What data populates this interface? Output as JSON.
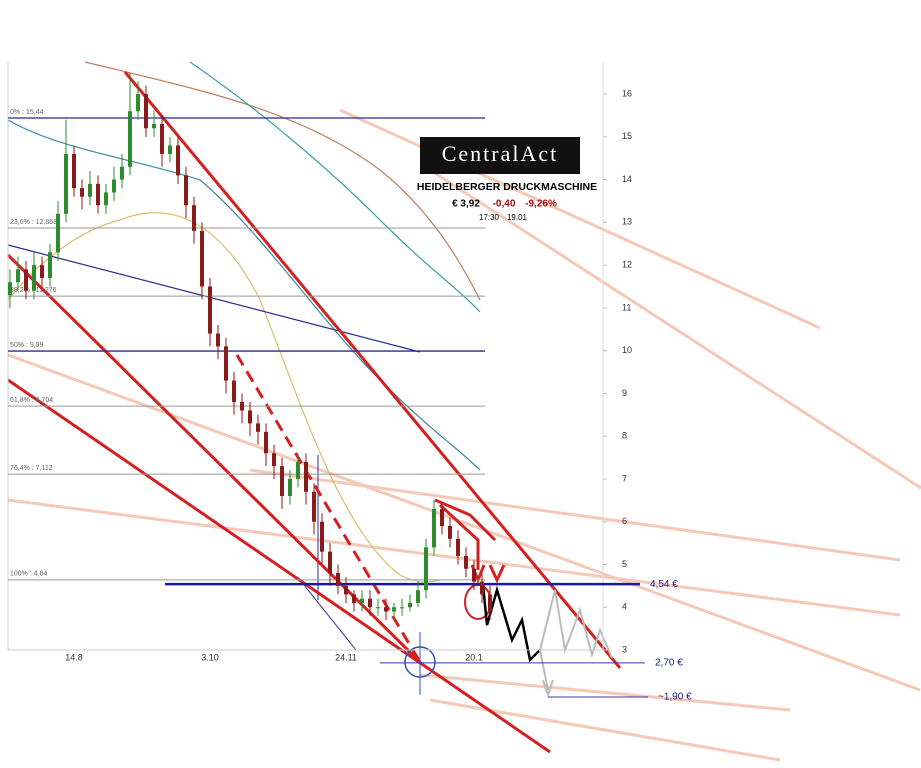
{
  "chart_data": {
    "type": "candlestick",
    "title": "HEIDELBERGER DRUCKMASCHINE",
    "logo": "CentralAct",
    "quote": {
      "price": "€ 3,92",
      "change": "-0,40",
      "change_pct": "-9,26%",
      "time": "17:30",
      "date": "19.01"
    },
    "categories": [
      null,
      null,
      null,
      null,
      null,
      null,
      null,
      null,
      "14.8",
      null,
      null,
      null,
      null,
      null,
      null,
      null,
      null,
      null,
      null,
      null,
      null,
      null,
      null,
      null,
      null,
      "3.10",
      null,
      null,
      null,
      null,
      null,
      null,
      null,
      null,
      null,
      null,
      null,
      null,
      null,
      null,
      null,
      null,
      "24.11",
      null,
      null,
      null,
      null,
      null,
      null,
      null,
      null,
      null,
      null,
      null,
      null,
      null,
      null,
      null,
      "20.1",
      null,
      null
    ],
    "open": [
      11.3,
      11.6,
      11.9,
      11.4,
      12.0,
      11.7,
      12.3,
      13.2,
      14.6,
      13.8,
      13.6,
      13.9,
      13.4,
      13.7,
      14.0,
      14.3,
      15.6,
      16.0,
      15.2,
      15.3,
      14.6,
      14.8,
      14.1,
      13.4,
      12.8,
      11.5,
      10.4,
      10.1,
      9.3,
      8.8,
      8.6,
      8.3,
      8.1,
      7.6,
      7.3,
      6.6,
      7.0,
      7.4,
      6.7,
      6.0,
      5.3,
      4.8,
      4.5,
      4.3,
      4.1,
      4.2,
      4.0,
      4.0,
      3.9,
      4.0,
      4.0,
      4.1,
      4.4,
      5.4,
      6.3,
      5.9,
      5.6,
      5.2,
      4.9,
      4.6,
      4.3
    ],
    "high": [
      11.9,
      12.2,
      12.1,
      12.3,
      12.2,
      12.5,
      13.5,
      15.4,
      14.8,
      14.0,
      14.2,
      14.1,
      13.9,
      14.3,
      14.6,
      16.5,
      16.3,
      16.2,
      15.6,
      15.5,
      15.0,
      15.0,
      14.3,
      13.6,
      13.0,
      11.7,
      10.6,
      10.3,
      9.5,
      9.0,
      8.8,
      8.5,
      8.3,
      7.8,
      7.5,
      7.2,
      7.6,
      7.6,
      6.9,
      6.2,
      5.5,
      5.0,
      4.7,
      4.4,
      4.4,
      4.4,
      4.2,
      4.2,
      4.1,
      4.2,
      4.3,
      4.6,
      5.6,
      6.5,
      6.4,
      6.1,
      5.8,
      5.4,
      5.1,
      4.8,
      4.5
    ],
    "low": [
      11.0,
      11.4,
      11.2,
      11.2,
      11.5,
      11.5,
      12.1,
      13.0,
      13.6,
      13.3,
      13.4,
      13.2,
      13.2,
      13.5,
      13.8,
      14.1,
      15.4,
      15.0,
      15.0,
      14.3,
      14.4,
      13.9,
      13.1,
      12.5,
      11.2,
      10.1,
      9.8,
      9.0,
      8.5,
      8.3,
      8.0,
      7.8,
      7.3,
      7.0,
      6.3,
      6.4,
      6.8,
      6.4,
      5.7,
      5.0,
      4.5,
      4.3,
      4.1,
      3.9,
      3.9,
      3.8,
      3.8,
      3.7,
      3.7,
      3.8,
      3.9,
      4.0,
      4.2,
      5.2,
      5.7,
      5.4,
      5.0,
      4.7,
      4.4,
      4.1,
      3.7
    ],
    "close": [
      11.6,
      11.9,
      11.4,
      12.0,
      11.7,
      12.3,
      13.2,
      14.6,
      13.8,
      13.6,
      13.9,
      13.4,
      13.7,
      14.0,
      14.3,
      15.6,
      16.0,
      15.2,
      15.3,
      14.6,
      14.8,
      14.1,
      13.4,
      12.8,
      11.5,
      10.4,
      10.1,
      9.3,
      8.8,
      8.6,
      8.3,
      8.1,
      7.6,
      7.3,
      6.6,
      7.0,
      7.4,
      6.7,
      6.0,
      5.3,
      4.8,
      4.5,
      4.3,
      4.1,
      4.2,
      4.0,
      4.0,
      3.9,
      4.0,
      4.0,
      4.1,
      4.4,
      5.4,
      6.3,
      5.9,
      5.6,
      5.2,
      4.9,
      4.6,
      4.3,
      3.92
    ],
    "up_color": "#2e8b2e",
    "down_color": "#8b1a1a",
    "ylim": [
      3,
      16.75
    ],
    "yticks": [
      3,
      4,
      5,
      6,
      7,
      8,
      9,
      10,
      11,
      12,
      13,
      14,
      15,
      16
    ],
    "fib_levels": [
      {
        "value": 15.44,
        "label": "0% : 15,44"
      },
      {
        "value": 12.868,
        "label": "23,6% : 12,868"
      },
      {
        "value": 11.276,
        "label": "38,2% : 11,276"
      },
      {
        "value": 9.99,
        "label": "50% : 9,99"
      },
      {
        "value": 8.704,
        "label": "61,8% : 8,704"
      },
      {
        "value": 7.112,
        "label": "76,4% : 7,112"
      },
      {
        "value": 4.64,
        "label": "100% : 4,64"
      }
    ],
    "price_targets": [
      {
        "value": 4.54,
        "label": "4,54 €"
      },
      {
        "value": 2.7,
        "label": "2,70 €"
      },
      {
        "value": 1.9,
        "label": "~1,90 €"
      }
    ]
  }
}
